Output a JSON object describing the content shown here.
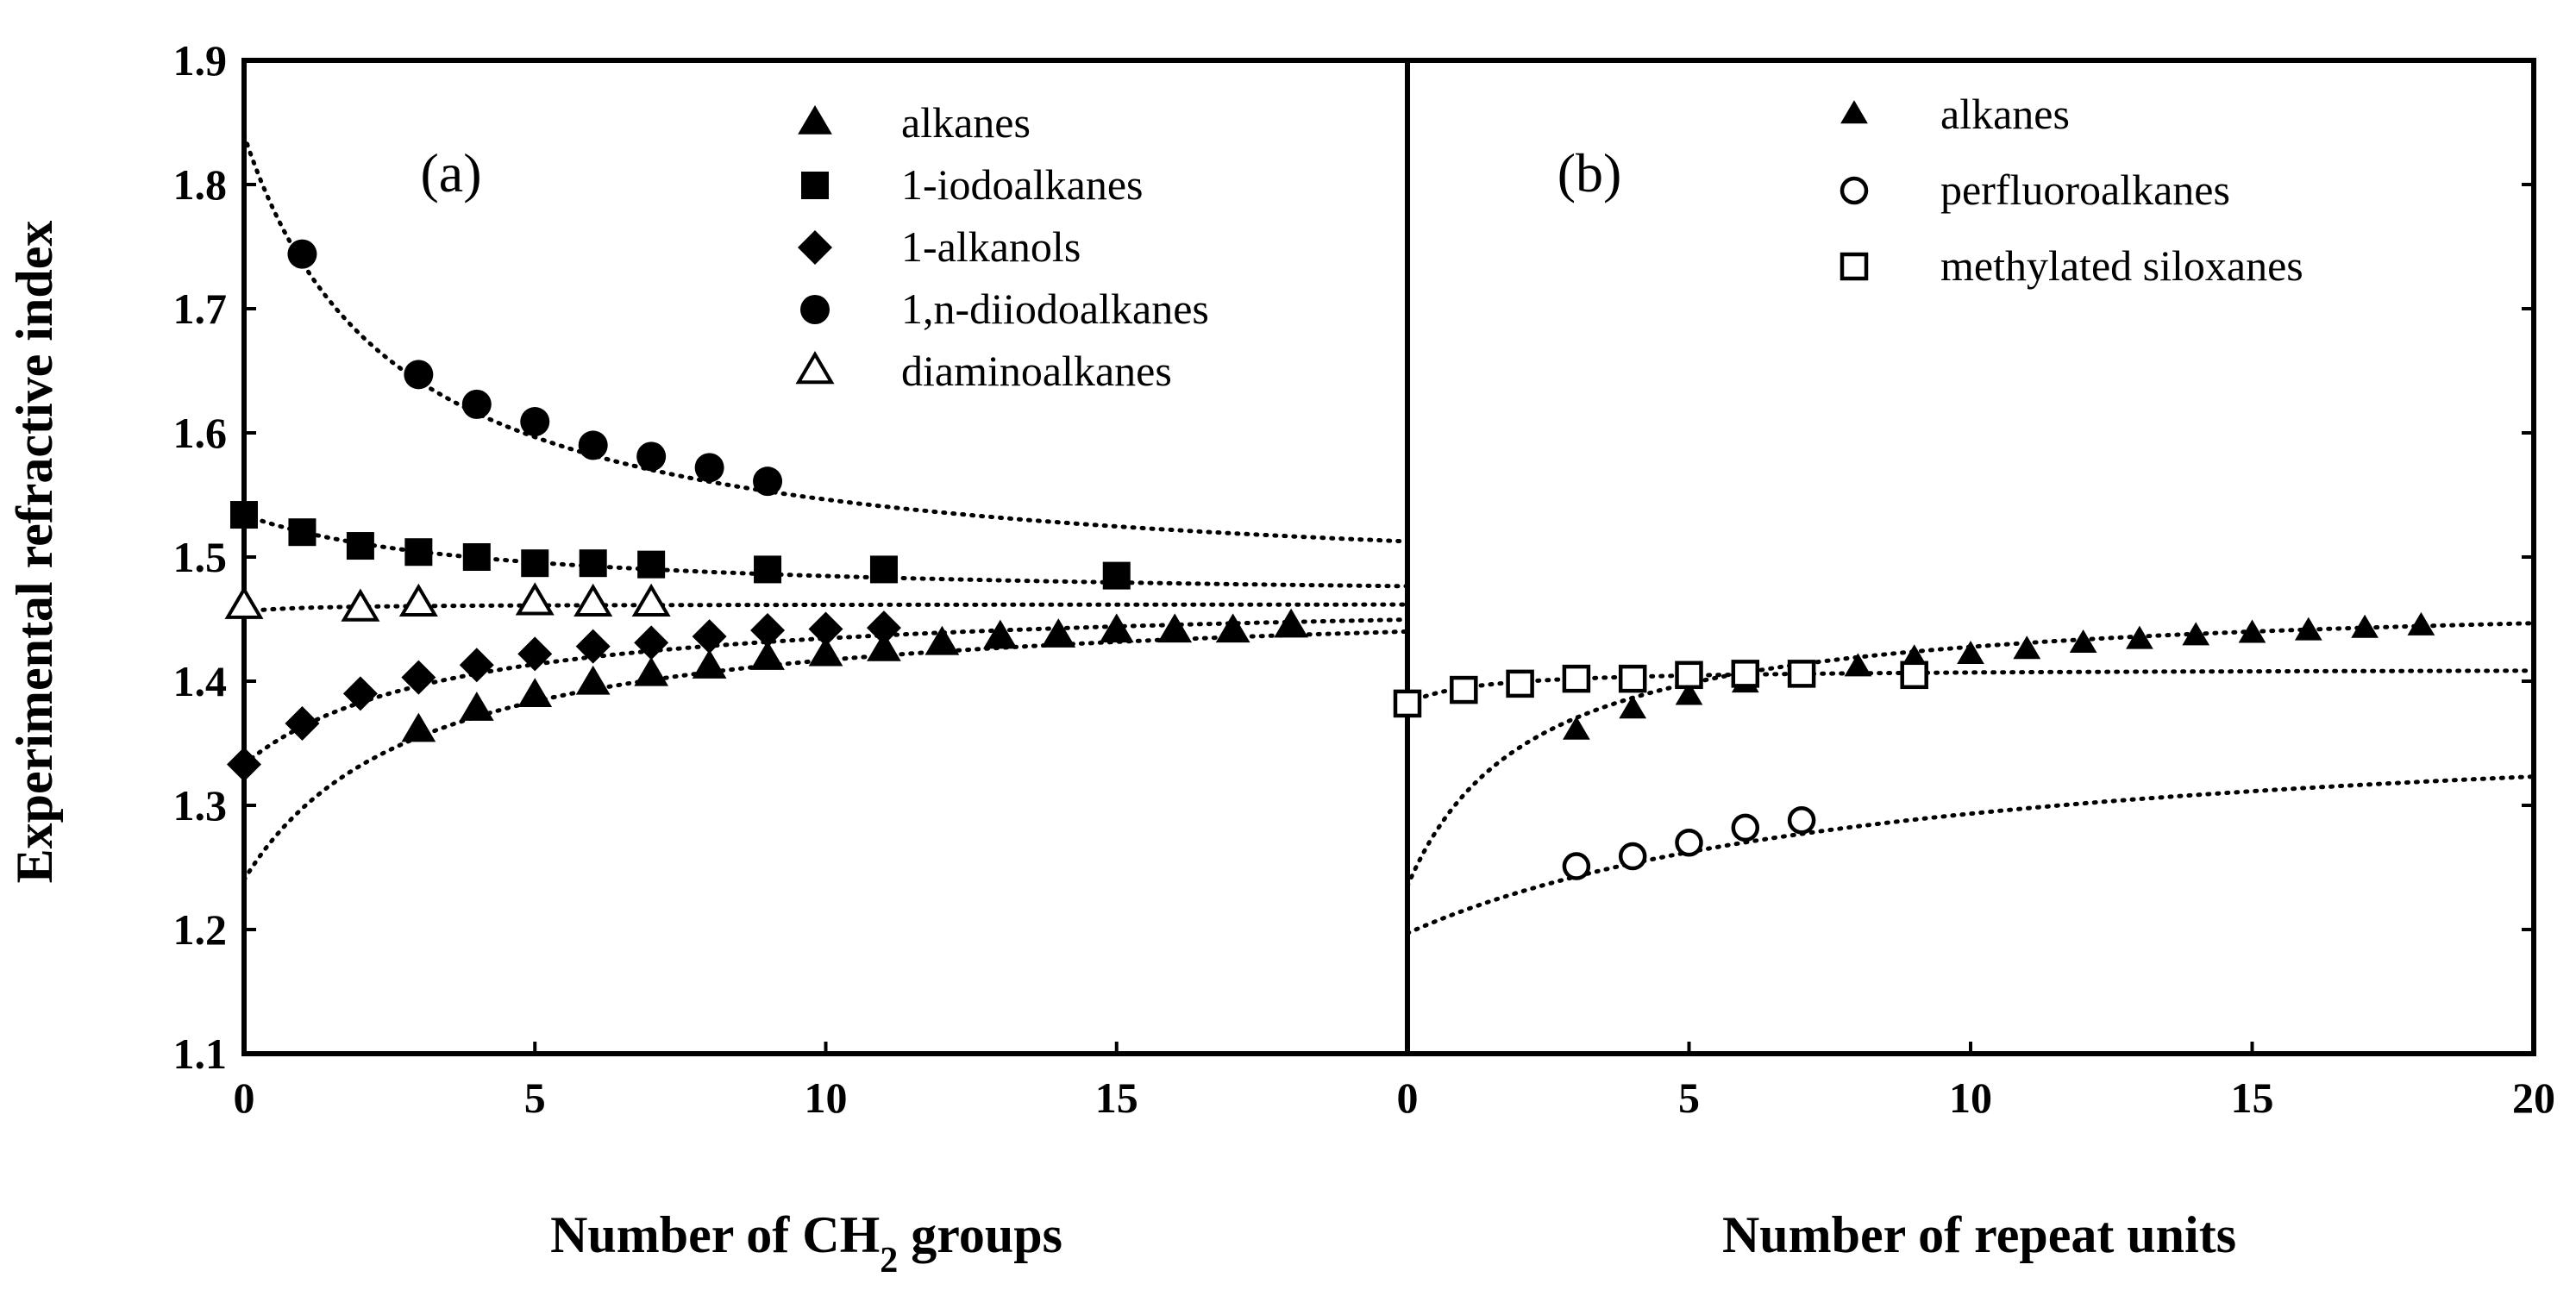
{
  "chart_data": [
    {
      "panel": "a",
      "type": "scatter",
      "panel_label": "(a)",
      "xlabel_pre": "Number of CH",
      "xlabel_sub": "2",
      "xlabel_post": " groups",
      "ylabel": "Experimental refractive index",
      "xlim": [
        0,
        20
      ],
      "ylim": [
        1.1,
        1.9
      ],
      "xticks": [
        "0",
        "5",
        "10",
        "15"
      ],
      "yticks": [
        "1.1",
        "1.2",
        "1.3",
        "1.4",
        "1.5",
        "1.6",
        "1.7",
        "1.8",
        "1.9"
      ],
      "legend_position": "top-right",
      "series": [
        {
          "name": "alkanes",
          "marker": "triangle-filled",
          "x": [
            3,
            4,
            5,
            6,
            7,
            8,
            9,
            10,
            11,
            12,
            13,
            14,
            15,
            16,
            17,
            18
          ],
          "y": [
            1.36,
            1.377,
            1.388,
            1.398,
            1.405,
            1.411,
            1.418,
            1.421,
            1.425,
            1.43,
            1.435,
            1.436,
            1.44,
            1.44,
            1.44,
            1.444
          ],
          "fit": {
            "n_inf": 1.47,
            "n0": 1.24,
            "k": 3.0
          }
        },
        {
          "name": "1-iodoalkanes",
          "marker": "square-filled",
          "x": [
            0,
            1,
            2,
            3,
            4,
            5,
            6,
            7,
            9,
            11,
            15
          ],
          "y": [
            1.534,
            1.52,
            1.509,
            1.504,
            1.5,
            1.495,
            1.495,
            1.494,
            1.49,
            1.49,
            1.485
          ],
          "fit": {
            "n_inf": 1.465,
            "n0": 1.534,
            "k": 4.0
          }
        },
        {
          "name": "1-alkanols",
          "marker": "diamond-filled",
          "x": [
            0,
            1,
            2,
            3,
            4,
            5,
            6,
            7,
            8,
            9,
            10,
            11
          ],
          "y": [
            1.333,
            1.366,
            1.39,
            1.403,
            1.413,
            1.422,
            1.428,
            1.431,
            1.436,
            1.441,
            1.442,
            1.443
          ],
          "fit": {
            "n_inf": 1.47,
            "n0": 1.333,
            "k": 3.5
          }
        },
        {
          "name": "1,n-diiodoalkanes",
          "marker": "circle-filled",
          "x": [
            1,
            3,
            4,
            5,
            6,
            7,
            8,
            9
          ],
          "y": [
            1.744,
            1.647,
            1.623,
            1.609,
            1.59,
            1.581,
            1.572,
            1.561
          ],
          "fit": {
            "n_inf": 1.47,
            "n0": 1.84,
            "k": 2.6
          }
        },
        {
          "name": "diaminoalkanes",
          "marker": "triangle-open",
          "x": [
            0,
            2,
            3,
            5,
            6,
            7
          ],
          "y": [
            1.46,
            1.458,
            1.462,
            1.463,
            1.462,
            1.462
          ],
          "fit": {
            "n_inf": 1.462,
            "n0": 1.456,
            "k": 1.0
          }
        }
      ]
    },
    {
      "panel": "b",
      "type": "scatter",
      "panel_label": "(b)",
      "xlabel": "Number of repeat units",
      "xlim": [
        0,
        20
      ],
      "ylim": [
        1.1,
        1.9
      ],
      "xticks": [
        "0",
        "5",
        "10",
        "15",
        "20"
      ],
      "legend_position": "top-right",
      "series": [
        {
          "name": "alkanes",
          "marker": "triangle-filled-small",
          "x": [
            3,
            4,
            5,
            6,
            7,
            8,
            9,
            10,
            11,
            12,
            13,
            14,
            15,
            16,
            17,
            18
          ],
          "y": [
            1.36,
            1.377,
            1.388,
            1.398,
            1.405,
            1.411,
            1.418,
            1.421,
            1.425,
            1.43,
            1.433,
            1.436,
            1.438,
            1.44,
            1.442,
            1.444
          ],
          "fit": {
            "n_inf": 1.47,
            "n0": 1.235,
            "k": 2.2
          }
        },
        {
          "name": "perfluoroalkanes",
          "marker": "circle-open",
          "x": [
            3,
            4,
            5,
            6,
            7
          ],
          "y": [
            1.251,
            1.259,
            1.27,
            1.282,
            1.288
          ],
          "fit": {
            "n_inf": 1.38,
            "n0": 1.197,
            "k": 9.0
          }
        },
        {
          "name": "methylated siloxanes",
          "marker": "square-open",
          "x": [
            0,
            1,
            2,
            3,
            4,
            5,
            6,
            7,
            9
          ],
          "y": [
            1.382,
            1.393,
            1.398,
            1.402,
            1.402,
            1.405,
            1.406,
            1.406,
            1.405
          ],
          "fit": {
            "n_inf": 1.41,
            "n0": 1.382,
            "k": 1.2
          }
        }
      ]
    }
  ]
}
